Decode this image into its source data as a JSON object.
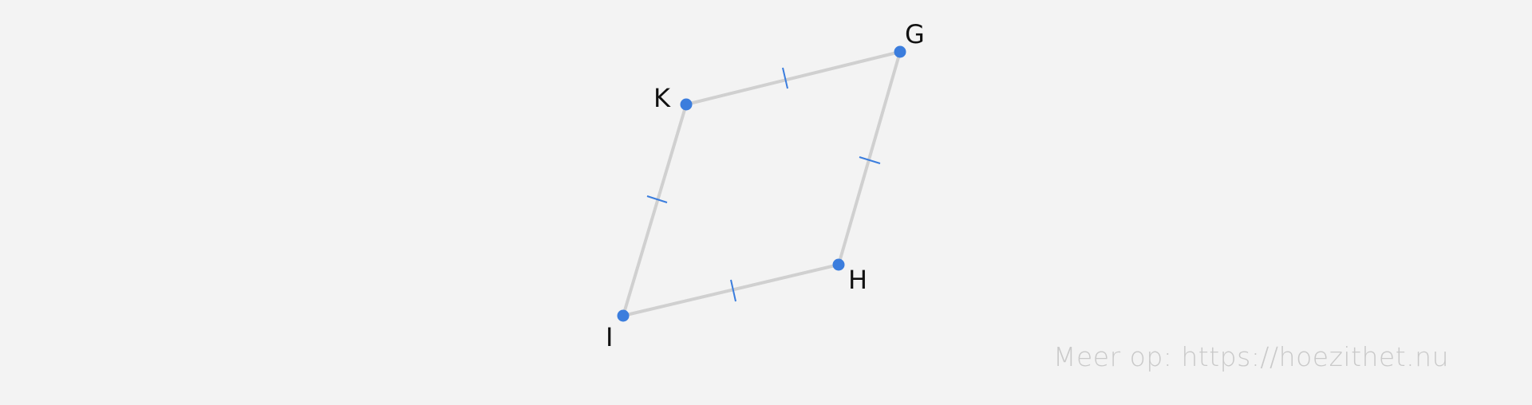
{
  "figure": {
    "points": [
      {
        "id": "G",
        "label": "G"
      },
      {
        "id": "K",
        "label": "K"
      },
      {
        "id": "H",
        "label": "H"
      },
      {
        "id": "I",
        "label": "I"
      }
    ],
    "segments": [
      {
        "from": "K",
        "to": "G"
      },
      {
        "from": "G",
        "to": "H"
      },
      {
        "from": "H",
        "to": "I"
      },
      {
        "from": "I",
        "to": "K"
      }
    ],
    "colors": {
      "point": "#3b7ddd",
      "segment": "#d0d0d0",
      "tick": "#3b7ddd",
      "label": "#111111"
    }
  },
  "watermark": {
    "text": "Meer op: https://hoezithet.nu"
  }
}
